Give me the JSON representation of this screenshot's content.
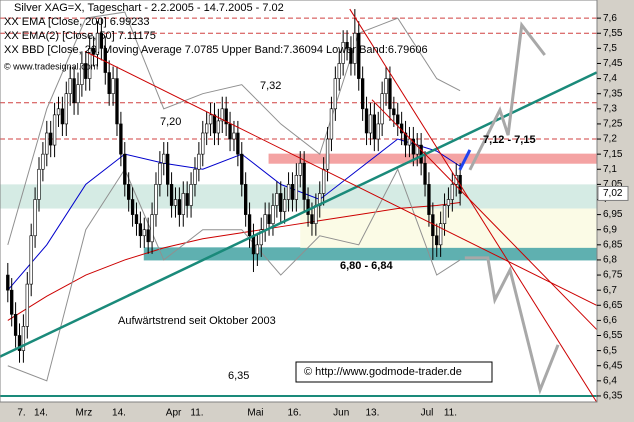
{
  "chart_data": {
    "type": "candlestick",
    "title": "Silver XAG=X, Tageschart - 2.2.2005 - 14.7.2005 - 7.02",
    "categories": [
      null,
      null,
      null,
      "7.",
      null,
      null,
      null,
      null,
      "14.",
      null,
      null,
      null,
      null,
      null,
      null,
      null,
      null,
      null,
      null,
      "Mrz",
      null,
      null,
      null,
      null,
      null,
      null,
      null,
      null,
      "14.",
      null,
      null,
      null,
      null,
      null,
      null,
      null,
      null,
      null,
      null,
      null,
      null,
      null,
      "Apr",
      null,
      null,
      null,
      null,
      null,
      "11.",
      null,
      null,
      null,
      null,
      null,
      null,
      null,
      null,
      null,
      null,
      null,
      null,
      null,
      null,
      "Mai",
      null,
      null,
      null,
      null,
      null,
      null,
      null,
      null,
      null,
      "16.",
      null,
      null,
      null,
      null,
      null,
      null,
      null,
      null,
      null,
      null,
      null,
      "Jun",
      null,
      null,
      null,
      null,
      null,
      null,
      null,
      "13.",
      null,
      null,
      null,
      null,
      null,
      null,
      null,
      null,
      null,
      null,
      null,
      null,
      null,
      "Jul",
      null,
      null,
      null,
      null,
      null,
      "11.",
      null,
      null,
      null
    ],
    "series": [
      {
        "name": "Silver XAG=X",
        "open": [
          6.75,
          6.7,
          6.62,
          6.55,
          6.5,
          6.58,
          6.72,
          6.88,
          7.0,
          7.1,
          7.15,
          7.22,
          7.18,
          7.28,
          7.3,
          7.25,
          7.35,
          7.4,
          7.32,
          7.38,
          7.45,
          7.4,
          7.5,
          7.48,
          7.55,
          7.5,
          7.42,
          7.35,
          7.4,
          7.25,
          7.15,
          7.05,
          7.0,
          6.95,
          6.92,
          6.88,
          6.9,
          6.86,
          6.95,
          7.05,
          7.12,
          7.15,
          7.05,
          6.98,
          7.0,
          6.95,
          7.02,
          6.98,
          7.05,
          7.1,
          7.15,
          7.22,
          7.25,
          7.28,
          7.22,
          7.26,
          7.3,
          7.25,
          7.2,
          7.22,
          7.15,
          7.05,
          6.95,
          6.88,
          6.82,
          6.85,
          6.9,
          6.95,
          6.92,
          6.98,
          7.02,
          6.96,
          7.0,
          7.05,
          7.0,
          7.08,
          7.12,
          7.0,
          6.95,
          6.92,
          6.98,
          7.02,
          7.1,
          7.2,
          7.3,
          7.4,
          7.45,
          7.52,
          7.5,
          7.45,
          7.55,
          7.4,
          7.3,
          7.22,
          7.28,
          7.2,
          7.25,
          7.35,
          7.4,
          7.3,
          7.28,
          7.25,
          7.22,
          7.18,
          7.2,
          7.15,
          7.18,
          7.12,
          7.05,
          6.95,
          6.88,
          6.85,
          6.92,
          6.98,
          7.0,
          7.05,
          7.08
        ],
        "high": [
          6.79,
          6.74,
          6.66,
          6.59,
          6.62,
          6.76,
          6.92,
          7.04,
          7.14,
          7.19,
          7.26,
          7.26,
          7.32,
          7.34,
          7.34,
          7.39,
          7.44,
          7.44,
          7.42,
          7.49,
          7.49,
          7.54,
          7.54,
          7.59,
          7.6,
          7.54,
          7.46,
          7.44,
          7.44,
          7.29,
          7.19,
          7.09,
          7.04,
          6.99,
          6.96,
          6.94,
          6.94,
          6.99,
          7.09,
          7.16,
          7.19,
          7.19,
          7.09,
          7.04,
          7.04,
          7.06,
          7.06,
          7.09,
          7.14,
          7.19,
          7.26,
          7.29,
          7.32,
          7.32,
          7.3,
          7.34,
          7.34,
          7.29,
          7.26,
          7.26,
          7.19,
          7.09,
          6.99,
          6.92,
          6.89,
          6.94,
          6.99,
          6.99,
          7.02,
          7.06,
          7.06,
          7.04,
          7.09,
          7.09,
          7.12,
          7.16,
          7.16,
          7.04,
          6.99,
          7.02,
          7.06,
          7.14,
          7.24,
          7.34,
          7.44,
          7.49,
          7.56,
          7.56,
          7.54,
          7.63,
          7.59,
          7.44,
          7.34,
          7.32,
          7.32,
          7.29,
          7.39,
          7.44,
          7.44,
          7.34,
          7.32,
          7.29,
          7.26,
          7.24,
          7.24,
          7.22,
          7.22,
          7.16,
          7.09,
          6.99,
          6.92,
          6.96,
          7.02,
          7.04,
          7.09,
          7.12,
          7.12
        ],
        "low": [
          6.66,
          6.58,
          6.51,
          6.46,
          6.46,
          6.54,
          6.68,
          6.84,
          6.96,
          7.06,
          7.11,
          7.14,
          7.14,
          7.24,
          7.21,
          7.21,
          7.31,
          7.28,
          7.28,
          7.34,
          7.36,
          7.36,
          7.44,
          7.44,
          7.46,
          7.38,
          7.31,
          7.31,
          7.21,
          7.11,
          7.01,
          6.96,
          6.91,
          6.88,
          6.84,
          6.84,
          6.82,
          6.82,
          6.91,
          7.01,
          7.08,
          7.01,
          6.94,
          6.94,
          6.91,
          6.91,
          6.94,
          6.94,
          7.01,
          7.06,
          7.11,
          7.18,
          7.21,
          7.18,
          7.18,
          7.22,
          7.21,
          7.16,
          7.16,
          7.11,
          7.01,
          6.91,
          6.84,
          6.76,
          6.78,
          6.81,
          6.86,
          6.88,
          6.88,
          6.94,
          6.92,
          6.92,
          6.96,
          6.96,
          6.96,
          7.04,
          6.96,
          6.91,
          6.88,
          6.88,
          6.94,
          6.98,
          7.06,
          7.16,
          7.26,
          7.36,
          7.41,
          7.46,
          7.41,
          7.41,
          7.36,
          7.26,
          7.18,
          7.18,
          7.16,
          7.16,
          7.21,
          7.31,
          7.26,
          7.24,
          7.21,
          7.18,
          7.14,
          7.14,
          7.11,
          7.11,
          7.08,
          7.01,
          6.91,
          6.8,
          6.81,
          6.81,
          6.88,
          6.94,
          6.96,
          7.01,
          6.98
        ],
        "close": [
          6.7,
          6.62,
          6.55,
          6.5,
          6.58,
          6.72,
          6.88,
          7.0,
          7.1,
          7.15,
          7.22,
          7.18,
          7.28,
          7.3,
          7.25,
          7.35,
          7.4,
          7.32,
          7.38,
          7.45,
          7.4,
          7.5,
          7.48,
          7.55,
          7.5,
          7.42,
          7.35,
          7.4,
          7.25,
          7.15,
          7.05,
          7.0,
          6.95,
          6.92,
          6.88,
          6.9,
          6.86,
          6.95,
          7.05,
          7.12,
          7.15,
          7.05,
          6.98,
          7.0,
          6.95,
          7.02,
          6.98,
          7.05,
          7.1,
          7.15,
          7.22,
          7.25,
          7.28,
          7.22,
          7.26,
          7.3,
          7.25,
          7.2,
          7.22,
          7.15,
          7.05,
          6.95,
          6.88,
          6.82,
          6.85,
          6.9,
          6.95,
          6.92,
          6.98,
          7.02,
          6.96,
          7.0,
          7.05,
          7.0,
          7.08,
          7.12,
          7.0,
          6.95,
          6.92,
          6.98,
          7.02,
          7.1,
          7.2,
          7.3,
          7.4,
          7.45,
          7.52,
          7.5,
          7.45,
          7.55,
          7.4,
          7.3,
          7.22,
          7.28,
          7.2,
          7.25,
          7.35,
          7.4,
          7.3,
          7.28,
          7.25,
          7.22,
          7.18,
          7.2,
          7.15,
          7.18,
          7.12,
          7.05,
          6.95,
          6.88,
          6.85,
          6.92,
          6.98,
          7.0,
          7.05,
          7.08,
          7.02
        ]
      }
    ],
    "indicators": [
      {
        "name": "XX EMA [Close, 200] 6.99233",
        "color": "#cc0000",
        "x": [
          0,
          10,
          20,
          30,
          40,
          50,
          60,
          70,
          80,
          90,
          100,
          110,
          116
        ],
        "values": [
          6.6,
          6.68,
          6.75,
          6.8,
          6.84,
          6.87,
          6.89,
          6.91,
          6.93,
          6.95,
          6.97,
          6.98,
          6.99
        ]
      },
      {
        "name": "XX EMA(2) [Close, 50] 7.11175",
        "color": "#0000cc",
        "x": [
          0,
          10,
          20,
          30,
          40,
          50,
          60,
          70,
          80,
          90,
          100,
          110,
          116
        ],
        "values": [
          6.7,
          6.85,
          7.05,
          7.15,
          7.12,
          7.1,
          7.15,
          7.05,
          7.0,
          7.1,
          7.2,
          7.16,
          7.11
        ]
      },
      {
        "name": "XX BBD [Close, 20, Moving Average 7.0785 Upper Band:7.36094 Lower Band:6.79606",
        "color": "#909090",
        "x": [
          0,
          10,
          20,
          30,
          40,
          50,
          60,
          70,
          80,
          90,
          100,
          110,
          116
        ],
        "upper": [
          6.85,
          7.3,
          7.6,
          7.62,
          7.3,
          7.35,
          7.38,
          7.25,
          7.15,
          7.55,
          7.6,
          7.4,
          7.36
        ],
        "lower": [
          6.45,
          6.4,
          6.9,
          7.1,
          6.8,
          6.9,
          6.9,
          6.75,
          6.88,
          6.85,
          7.1,
          6.75,
          6.8
        ]
      }
    ],
    "zones": [
      {
        "from": 67,
        "low": 7.12,
        "high": 7.15,
        "label": "7,12 - 7,15",
        "color": "#f4a3a3"
      },
      {
        "from": 35,
        "low": 6.8,
        "high": 6.84,
        "label": "6,80 - 6,84",
        "color": "#5fb0b0"
      },
      {
        "from": -2,
        "low": 6.97,
        "high": 7.05,
        "color": "#d5ebe4"
      },
      {
        "from": 75,
        "low": 6.84,
        "high": 6.97,
        "color": "#fbfbe6"
      }
    ],
    "hlines": [
      {
        "value": 7.6,
        "color": "#d04040"
      },
      {
        "value": 7.55,
        "color": "#d04040"
      },
      {
        "value": 7.32,
        "label": "7,32",
        "color": "#d04040"
      },
      {
        "value": 7.2,
        "label": "7,20",
        "color": "#d04040"
      },
      {
        "value": 6.35,
        "label": "6,35",
        "color": "#1a8a7a"
      }
    ],
    "trendlines": [
      {
        "x": [
          -2,
          151
        ],
        "y": [
          6.48,
          7.42
        ],
        "color": "#1a8a7a",
        "label": "Aufwärtstrend seit Oktober 2003"
      },
      {
        "x": [
          19.8,
          151
        ],
        "y": [
          7.49,
          6.65
        ],
        "color": "#cc0000"
      },
      {
        "x": [
          87.7,
          151
        ],
        "y": [
          7.63,
          6.33
        ],
        "color": "#cc0000"
      },
      {
        "x": [
          93.4,
          151
        ],
        "y": [
          7.33,
          6.57
        ],
        "color": "#cc0000"
      }
    ],
    "projections": [
      {
        "x": [
          118.5,
          126.2,
          128.3,
          131.8,
          137.7
        ],
        "y": [
          7.098,
          7.296,
          7.213,
          7.577,
          7.478
        ],
        "color": "#a8a8a8"
      },
      {
        "x": [
          117.2,
          123.1,
          124.9,
          128.8,
          136.5,
          141.1
        ],
        "y": [
          6.807,
          6.807,
          6.668,
          6.767,
          6.37,
          6.519
        ],
        "color": "#a8a8a8"
      },
      {
        "x": [
          115.9,
          118.5
        ],
        "y": [
          7.098,
          7.164
        ],
        "color": "#2244ee"
      }
    ],
    "current": {
      "value": 7.02,
      "label": "7,02"
    },
    "source": "© www.tradesignal.com",
    "copyright": "© http://www.godmode-trader.de",
    "xlim": [
      -2,
      151.1
    ],
    "ylim": [
      6.33,
      7.66
    ],
    "yticks": [
      {
        "value": 7.6,
        "label": "7,6"
      },
      {
        "value": 7.55,
        "label": "7,55"
      },
      {
        "value": 7.5,
        "label": "7,5"
      },
      {
        "value": 7.45,
        "label": "7,45"
      },
      {
        "value": 7.4,
        "label": "7,4"
      },
      {
        "value": 7.35,
        "label": "7,35"
      },
      {
        "value": 7.3,
        "label": "7,3"
      },
      {
        "value": 7.25,
        "label": "7,25"
      },
      {
        "value": 7.2,
        "label": "7,2"
      },
      {
        "value": 7.15,
        "label": "7,15"
      },
      {
        "value": 7.1,
        "label": "7,1"
      },
      {
        "value": 7.05,
        "label": "7,05"
      },
      {
        "value": 7,
        "label": "7"
      },
      {
        "value": 6.95,
        "label": "6,95"
      },
      {
        "value": 6.9,
        "label": "6,9"
      },
      {
        "value": 6.85,
        "label": "6,85"
      },
      {
        "value": 6.8,
        "label": "6,8"
      },
      {
        "value": 6.75,
        "label": "6,75"
      },
      {
        "value": 6.7,
        "label": "6,7"
      },
      {
        "value": 6.65,
        "label": "6,65"
      },
      {
        "value": 6.6,
        "label": "6,6"
      },
      {
        "value": 6.55,
        "label": "6,55"
      },
      {
        "value": 6.5,
        "label": "6,5"
      },
      {
        "value": 6.45,
        "label": "6,45"
      },
      {
        "value": 6.4,
        "label": "6,4"
      },
      {
        "value": 6.35,
        "label": "6,35"
      }
    ]
  }
}
